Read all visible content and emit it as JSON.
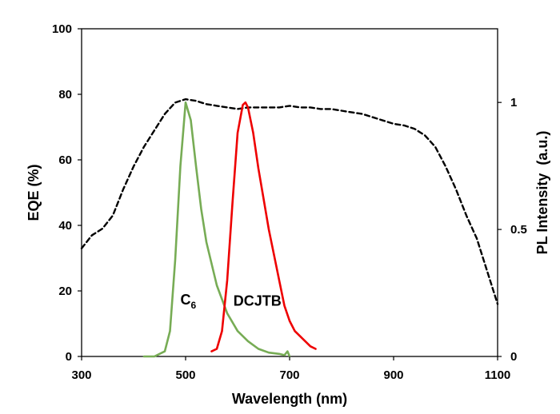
{
  "chart_data": {
    "type": "line",
    "xlabel": "Wavelength (nm)",
    "ylabel": "EQE (%)",
    "y2label": "PL Intensity  (a.u.)",
    "xlim": [
      300,
      1100
    ],
    "ylim": [
      0,
      100
    ],
    "y2lim": [
      0,
      1.29
    ],
    "x_ticks": [
      "300",
      "500",
      "700",
      "900",
      "1100"
    ],
    "y_ticks": [
      "0",
      "20",
      "40",
      "60",
      "80",
      "100"
    ],
    "y2_ticks": [
      "0",
      "0.5",
      "1"
    ],
    "grid": false,
    "series": [
      {
        "axis": "left",
        "style": "dashed",
        "color": "#000000",
        "x": [
          300,
          320,
          340,
          360,
          380,
          400,
          420,
          440,
          460,
          480,
          500,
          520,
          540,
          560,
          580,
          600,
          620,
          640,
          660,
          680,
          700,
          720,
          740,
          760,
          780,
          800,
          820,
          840,
          860,
          880,
          900,
          920,
          940,
          960,
          980,
          1000,
          1020,
          1040,
          1060,
          1080,
          1100
        ],
        "values": [
          33,
          37,
          39,
          43,
          51,
          58,
          64,
          69,
          74,
          77.5,
          78.5,
          78,
          77,
          76.5,
          76,
          75.5,
          76,
          76,
          76,
          76,
          76.5,
          76,
          76,
          75.5,
          75.5,
          75,
          74.5,
          74,
          73,
          72,
          71,
          70.5,
          69.5,
          67.5,
          64,
          58,
          51,
          43,
          36,
          26,
          16
        ]
      },
      {
        "axis": "right",
        "style": "solid",
        "color": "#77ac55",
        "x": [
          420,
          440,
          460,
          470,
          480,
          490,
          500,
          510,
          520,
          530,
          540,
          560,
          580,
          600,
          620,
          640,
          660,
          680,
          690,
          696,
          700
        ],
        "values": [
          0,
          0,
          0.02,
          0.1,
          0.38,
          0.75,
          1.0,
          0.93,
          0.75,
          0.58,
          0.45,
          0.28,
          0.17,
          0.1,
          0.06,
          0.03,
          0.015,
          0.01,
          0.005,
          0.02,
          0
        ]
      },
      {
        "axis": "right",
        "style": "solid",
        "color": "#ee0000",
        "x": [
          550,
          560,
          570,
          580,
          590,
          600,
          610,
          615,
          620,
          630,
          640,
          650,
          660,
          670,
          680,
          690,
          700,
          710,
          720,
          730,
          740,
          750
        ],
        "values": [
          0.02,
          0.03,
          0.1,
          0.3,
          0.6,
          0.88,
          0.99,
          1.0,
          0.98,
          0.88,
          0.74,
          0.62,
          0.5,
          0.4,
          0.3,
          0.2,
          0.14,
          0.1,
          0.08,
          0.06,
          0.04,
          0.03
        ]
      }
    ],
    "annotations": [
      {
        "text": "C",
        "sub": "6",
        "x": 490,
        "y": 15.8
      },
      {
        "text": "DCJTB",
        "x": 592,
        "y": 15.5
      }
    ]
  }
}
